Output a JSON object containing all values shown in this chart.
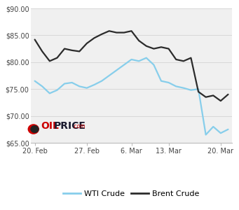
{
  "wti_x": [
    0,
    1,
    2,
    3,
    4,
    5,
    6,
    7,
    8,
    9,
    10,
    11,
    12,
    13,
    14,
    15,
    16,
    17,
    18,
    19,
    20,
    21,
    22,
    23,
    24,
    25,
    26
  ],
  "wti_y": [
    76.5,
    75.5,
    74.2,
    74.8,
    76.0,
    76.2,
    75.5,
    75.2,
    75.8,
    76.5,
    77.5,
    78.5,
    79.5,
    80.5,
    80.2,
    80.8,
    79.5,
    76.5,
    76.2,
    75.5,
    75.2,
    74.8,
    75.0,
    66.5,
    68.0,
    66.8,
    67.5
  ],
  "brent_x": [
    0,
    1,
    2,
    3,
    4,
    5,
    6,
    7,
    8,
    9,
    10,
    11,
    12,
    13,
    14,
    15,
    16,
    17,
    18,
    19,
    20,
    21,
    22,
    23,
    24,
    25,
    26
  ],
  "brent_y": [
    84.2,
    82.0,
    80.2,
    80.8,
    82.5,
    82.2,
    82.0,
    83.5,
    84.5,
    85.2,
    85.8,
    85.5,
    85.5,
    85.8,
    84.0,
    83.0,
    82.5,
    82.8,
    82.5,
    80.5,
    80.2,
    80.8,
    74.5,
    73.5,
    73.8,
    72.8,
    74.0
  ],
  "wti_color": "#87ceeb",
  "brent_color": "#2b2b2b",
  "bg_color": "#ffffff",
  "plot_bg_color": "#f0f0f0",
  "grid_color": "#d8d8d8",
  "ylim": [
    65.0,
    90.0
  ],
  "yticks": [
    65.0,
    70.0,
    75.0,
    80.0,
    85.0,
    90.0
  ],
  "xtick_positions": [
    0,
    7,
    13,
    18,
    25
  ],
  "xtick_labels": [
    "20. Feb",
    "27. Feb",
    "6. Mar",
    "13. Mar",
    "20. Mar"
  ],
  "legend_wti": "WTI Crude",
  "legend_brent": "Brent Crude",
  "line_width": 1.6
}
